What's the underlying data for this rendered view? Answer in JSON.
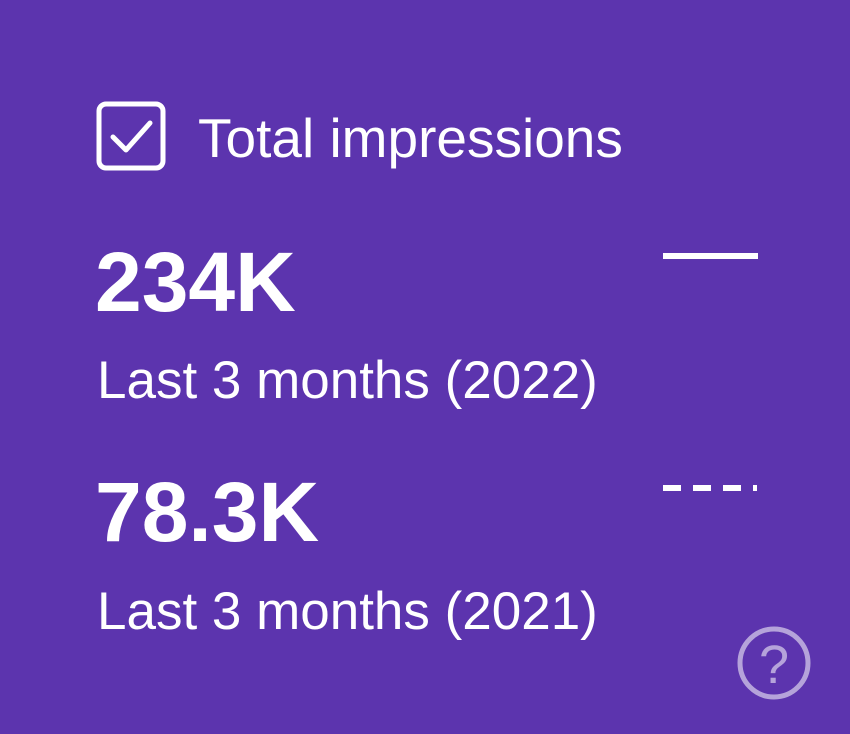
{
  "card": {
    "title": "Total impressions",
    "metrics": [
      {
        "value": "234K",
        "label": "Last 3 months (2022)"
      },
      {
        "value": "78.3K",
        "label": "Last 3 months (2021)"
      }
    ],
    "help_icon": "?"
  }
}
